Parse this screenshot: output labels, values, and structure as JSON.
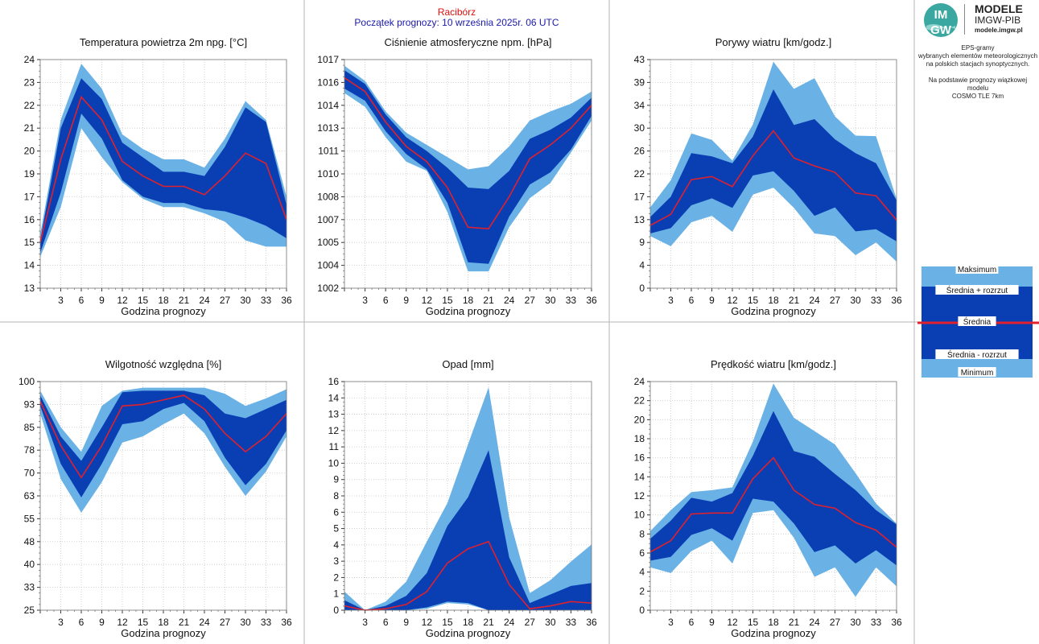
{
  "header": {
    "station": "Racibórz",
    "forecast_start": "Początek prognozy: 10 września 2025r. 06 UTC"
  },
  "logo": {
    "mark_top": "IM",
    "mark_bottom": "GW",
    "line1": "MODELE",
    "line2": "IMGW-PIB",
    "line3": "modele.imgw.pl"
  },
  "info": {
    "line1": "EPS-gramy",
    "line2": "wybranych elementów meteorologicznych",
    "line3": "na polskich stacjach  synoptycznych.",
    "line4": "Na podstawie prognozy wiązkowej modelu",
    "line5": "COSMO TLE 7km"
  },
  "legend": {
    "max": "Maksimum",
    "upper": "Średnia + rozrzut",
    "mean": "Średnia",
    "lower": "Średnia - rozrzut",
    "min": "Minimum"
  },
  "colors": {
    "minmax_band": "#6ab2e6",
    "spread_band": "#0a3fb4",
    "mean_line": "#e0202c",
    "station_title": "#e01010",
    "forecast_title": "#1a1aa8",
    "grid": "#c8c8c8"
  },
  "chart_data": [
    {
      "type": "area",
      "title": "Temperatura powietrza 2m npg. [°C]",
      "xlabel": "Godzina prognozy",
      "x": [
        0,
        3,
        6,
        9,
        12,
        15,
        18,
        21,
        24,
        27,
        30,
        33,
        36
      ],
      "xticks": [
        "3",
        "6",
        "9",
        "12",
        "15",
        "18",
        "21",
        "24",
        "27",
        "30",
        "33",
        "36"
      ],
      "ylim": [
        13,
        24
      ],
      "yticks": [
        "13",
        "14",
        "15",
        "16",
        "17",
        "19",
        "20",
        "21",
        "22",
        "23",
        "24"
      ],
      "max": [
        15.6,
        21.1,
        23.8,
        22.6,
        20.4,
        19.7,
        19.2,
        19.2,
        18.8,
        20.2,
        22.0,
        21.1,
        17.4
      ],
      "upper": [
        15.3,
        20.7,
        23.1,
        22.1,
        20.0,
        19.3,
        18.6,
        18.6,
        18.4,
        19.8,
        21.7,
        21.0,
        17.0
      ],
      "mean": [
        15.2,
        19.2,
        22.2,
        21.1,
        19.1,
        18.4,
        17.9,
        17.9,
        17.5,
        18.4,
        19.5,
        19.0,
        16.3
      ],
      "lower": [
        14.7,
        17.6,
        21.4,
        20.2,
        18.2,
        17.4,
        17.1,
        17.1,
        16.8,
        16.7,
        16.4,
        16.0,
        15.4
      ],
      "min": [
        14.5,
        16.9,
        20.7,
        19.3,
        18.1,
        17.3,
        16.9,
        16.9,
        16.6,
        16.2,
        15.3,
        15.0,
        15.0
      ]
    },
    {
      "type": "area",
      "title": "Ciśnienie atmosferyczne npm. [hPa]",
      "xlabel": "Godzina prognozy",
      "x": [
        0,
        3,
        6,
        9,
        12,
        15,
        18,
        21,
        24,
        27,
        30,
        33,
        36
      ],
      "xticks": [
        "3",
        "6",
        "9",
        "12",
        "15",
        "18",
        "21",
        "24",
        "27",
        "30",
        "33",
        "36"
      ],
      "ylim": [
        1002,
        1017
      ],
      "yticks": [
        "1002",
        "1004",
        "1005",
        "1007",
        "1008",
        "1010",
        "1011",
        "1013",
        "1014",
        "1016",
        "1017"
      ],
      "max": [
        1016.6,
        1015.6,
        1013.6,
        1012.2,
        1011.4,
        1010.6,
        1009.8,
        1010.0,
        1011.3,
        1013.0,
        1013.6,
        1014.1,
        1014.9
      ],
      "upper": [
        1016.3,
        1015.4,
        1013.4,
        1011.9,
        1011.0,
        1009.9,
        1008.6,
        1008.5,
        1009.7,
        1011.8,
        1012.4,
        1013.2,
        1014.5
      ],
      "mean": [
        1015.8,
        1014.9,
        1012.9,
        1011.3,
        1010.3,
        1008.6,
        1006.0,
        1005.9,
        1008.0,
        1010.5,
        1011.4,
        1012.5,
        1014.0
      ],
      "lower": [
        1015.1,
        1014.3,
        1012.3,
        1010.8,
        1009.8,
        1007.6,
        1003.7,
        1003.6,
        1006.7,
        1008.8,
        1009.6,
        1011.1,
        1013.3
      ],
      "min": [
        1014.8,
        1013.9,
        1011.9,
        1010.3,
        1009.7,
        1007.0,
        1003.1,
        1003.1,
        1006.0,
        1007.9,
        1008.9,
        1010.9,
        1013.0
      ]
    },
    {
      "type": "area",
      "title": "Porywy wiatru [km/godz.]",
      "xlabel": "Godzina prognozy",
      "x": [
        0,
        3,
        6,
        9,
        12,
        15,
        18,
        21,
        24,
        27,
        30,
        33,
        36
      ],
      "xticks": [
        "3",
        "6",
        "9",
        "12",
        "15",
        "18",
        "21",
        "24",
        "27",
        "30",
        "33",
        "36"
      ],
      "ylim": [
        0,
        43
      ],
      "yticks": [
        "0",
        "4",
        "9",
        "13",
        "17",
        "22",
        "26",
        "30",
        "34",
        "39",
        "43"
      ],
      "max": [
        15.2,
        20.3,
        29.1,
        27.9,
        24.0,
        30.8,
        42.6,
        37.5,
        39.5,
        32.3,
        28.7,
        28.6,
        16.8
      ],
      "upper": [
        13.4,
        17.2,
        25.4,
        24.8,
        23.5,
        28.5,
        37.4,
        30.7,
        31.8,
        28.0,
        25.4,
        23.5,
        16.5
      ],
      "mean": [
        11.8,
        13.9,
        20.4,
        21.0,
        19.1,
        24.9,
        29.6,
        24.5,
        23.0,
        21.8,
        17.9,
        17.4,
        12.8
      ],
      "lower": [
        10.3,
        11.3,
        15.6,
        16.9,
        15.1,
        21.2,
        22.0,
        18.3,
        13.6,
        15.2,
        10.7,
        11.1,
        8.8
      ],
      "min": [
        9.8,
        7.9,
        12.4,
        13.6,
        10.6,
        17.6,
        18.9,
        15.1,
        10.3,
        9.8,
        6.2,
        8.6,
        5.0
      ]
    },
    {
      "type": "area",
      "title": "Wilgotność względna [%]",
      "xlabel": "Godzina prognozy",
      "x": [
        0,
        3,
        6,
        9,
        12,
        15,
        18,
        21,
        24,
        27,
        30,
        33,
        36
      ],
      "xticks": [
        "3",
        "6",
        "9",
        "12",
        "15",
        "18",
        "21",
        "24",
        "27",
        "30",
        "33",
        "36"
      ],
      "ylim": [
        25,
        100
      ],
      "yticks": [
        "25",
        "33",
        "40",
        "48",
        "55",
        "63",
        "70",
        "78",
        "85",
        "93",
        "100"
      ],
      "max": [
        97.0,
        85.0,
        77.0,
        92.0,
        97.0,
        98.0,
        98.0,
        98.0,
        98.0,
        96.0,
        92.0,
        94.5,
        97.5
      ],
      "upper": [
        95.5,
        82.0,
        74.0,
        85.0,
        96.5,
        97.0,
        97.0,
        97.0,
        95.5,
        89.5,
        88.0,
        91.0,
        94.0
      ],
      "mean": [
        93.5,
        79.0,
        68.5,
        79.0,
        92.0,
        92.5,
        94.0,
        95.5,
        91.0,
        83.0,
        77.0,
        82.0,
        89.5
      ],
      "lower": [
        92.0,
        73.0,
        62.0,
        73.0,
        86.0,
        87.0,
        91.0,
        93.0,
        87.0,
        75.0,
        66.0,
        73.0,
        84.0
      ],
      "min": [
        89.5,
        68.0,
        57.0,
        67.0,
        80.0,
        82.0,
        86.0,
        89.5,
        83.0,
        72.0,
        62.5,
        70.5,
        82.0
      ]
    },
    {
      "type": "area",
      "title": "Opad [mm]",
      "xlabel": "Godzina prognozy",
      "x": [
        0,
        3,
        6,
        9,
        12,
        15,
        18,
        21,
        24,
        27,
        30,
        33,
        36
      ],
      "xticks": [
        "3",
        "6",
        "9",
        "12",
        "15",
        "18",
        "21",
        "24",
        "27",
        "30",
        "33",
        "36"
      ],
      "ylim": [
        0,
        16
      ],
      "yticks": [
        "0",
        "1",
        "2",
        "3",
        "4",
        "5",
        "6",
        "8",
        "9",
        "10",
        "11",
        "12",
        "13",
        "14",
        "16"
      ],
      "max": [
        1.3,
        0.0,
        0.6,
        2.0,
        4.8,
        7.5,
        11.6,
        15.6,
        6.5,
        1.2,
        2.1,
        3.4,
        4.6
      ],
      "upper": [
        0.7,
        0.0,
        0.3,
        1.0,
        2.6,
        5.9,
        7.9,
        11.2,
        3.7,
        0.5,
        1.1,
        1.7,
        1.9
      ],
      "mean": [
        0.3,
        0.0,
        0.1,
        0.4,
        1.3,
        3.3,
        4.3,
        4.8,
        1.8,
        0.1,
        0.3,
        0.6,
        0.5
      ],
      "lower": [
        0.0,
        0.0,
        0.0,
        0.0,
        0.2,
        0.6,
        0.5,
        0.0,
        0.0,
        0.0,
        0.0,
        0.0,
        0.0
      ],
      "min": [
        0.0,
        0.0,
        0.0,
        0.0,
        0.1,
        0.5,
        0.4,
        0.0,
        0.0,
        0.0,
        0.0,
        0.0,
        0.0
      ]
    },
    {
      "type": "area",
      "title": "Prędkość wiatru [km/godz.]",
      "xlabel": "Godzina prognozy",
      "x": [
        0,
        3,
        6,
        9,
        12,
        15,
        18,
        21,
        24,
        27,
        30,
        33,
        36
      ],
      "xticks": [
        "3",
        "6",
        "9",
        "12",
        "15",
        "18",
        "21",
        "24",
        "27",
        "30",
        "33",
        "36"
      ],
      "ylim": [
        0,
        24
      ],
      "yticks": [
        "0",
        "2",
        "4",
        "6",
        "8",
        "10",
        "12",
        "14",
        "16",
        "18",
        "20",
        "22",
        "24"
      ],
      "max": [
        8.3,
        10.5,
        12.4,
        12.6,
        12.9,
        17.7,
        23.8,
        20.2,
        18.8,
        17.4,
        14.4,
        11.2,
        9.1
      ],
      "upper": [
        7.5,
        9.4,
        11.8,
        11.4,
        12.3,
        16.2,
        20.9,
        16.7,
        16.1,
        14.3,
        12.6,
        10.5,
        9.0
      ],
      "mean": [
        6.1,
        7.3,
        10.1,
        10.2,
        10.2,
        13.8,
        16.0,
        12.6,
        11.1,
        10.7,
        9.2,
        8.4,
        6.6
      ],
      "lower": [
        5.2,
        5.6,
        7.9,
        8.6,
        7.3,
        11.7,
        11.4,
        9.1,
        6.1,
        6.8,
        4.9,
        6.3,
        4.7
      ],
      "min": [
        4.5,
        3.9,
        6.2,
        7.3,
        4.9,
        10.2,
        10.5,
        7.6,
        3.5,
        4.5,
        1.4,
        4.5,
        2.5
      ]
    }
  ]
}
